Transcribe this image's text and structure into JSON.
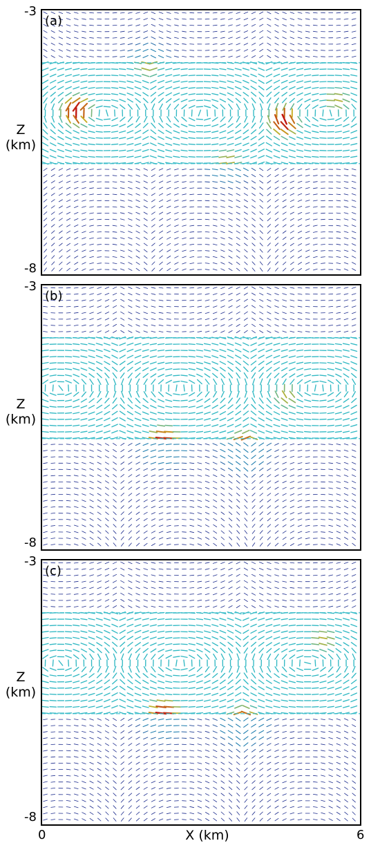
{
  "chart_data": [
    {
      "type": "vector_field",
      "panel_label": "(a)",
      "ylabel": "Z\n(km)",
      "xlim": [
        0,
        6
      ],
      "ylim": [
        -8,
        -3
      ],
      "y_ticks": [
        "-3",
        "-8"
      ],
      "layer_z": [
        -4.0,
        -5.9
      ],
      "cells": [
        {
          "x_center": 1.2,
          "z_center": -4.95,
          "rotation": "clockwise"
        },
        {
          "x_center": 3.0,
          "z_center": -4.95,
          "rotation": "counterclockwise"
        },
        {
          "x_center": 5.4,
          "z_center": -4.95,
          "rotation": "clockwise"
        }
      ],
      "hotspots": [
        {
          "x": 0.65,
          "z": -4.9,
          "magnitude": "high"
        },
        {
          "x": 4.55,
          "z": -5.1,
          "magnitude": "high"
        },
        {
          "x": 5.55,
          "z": -4.7,
          "magnitude": "medium"
        },
        {
          "x": 2.0,
          "z": -4.05,
          "magnitude": "medium"
        },
        {
          "x": 3.5,
          "z": -5.85,
          "magnitude": "medium"
        }
      ]
    },
    {
      "type": "vector_field",
      "panel_label": "(b)",
      "ylabel": "Z\n(km)",
      "xlim": [
        0,
        6
      ],
      "ylim": [
        -8,
        -3
      ],
      "y_ticks": [
        "-3",
        "-8"
      ],
      "layer_z": [
        -4.0,
        -5.9
      ],
      "cells": [
        {
          "x_center": 0.35,
          "z_center": -4.95,
          "rotation": "clockwise"
        },
        {
          "x_center": 2.6,
          "z_center": -4.95,
          "rotation": "counterclockwise"
        },
        {
          "x_center": 5.2,
          "z_center": -4.95,
          "rotation": "clockwise"
        }
      ],
      "hotspots": [
        {
          "x": 2.3,
          "z": -5.95,
          "magnitude": "high"
        },
        {
          "x": 3.8,
          "z": -6.05,
          "magnitude": "high"
        },
        {
          "x": 4.6,
          "z": -5.1,
          "magnitude": "medium"
        }
      ]
    },
    {
      "type": "vector_field",
      "panel_label": "(c)",
      "ylabel": "Z\n(km)",
      "xlabel": "X (km)",
      "xlim": [
        0,
        6
      ],
      "ylim": [
        -8,
        -3
      ],
      "y_ticks": [
        "-3",
        "-8"
      ],
      "x_ticks": [
        "0",
        "6"
      ],
      "layer_z": [
        -4.0,
        -5.9
      ],
      "cells": [
        {
          "x_center": 0.35,
          "z_center": -4.95,
          "rotation": "clockwise"
        },
        {
          "x_center": 2.6,
          "z_center": -4.95,
          "rotation": "counterclockwise"
        },
        {
          "x_center": 5.0,
          "z_center": -4.95,
          "rotation": "clockwise"
        }
      ],
      "hotspots": [
        {
          "x": 2.3,
          "z": -5.9,
          "magnitude": "high"
        },
        {
          "x": 3.8,
          "z": -6.05,
          "magnitude": "high"
        },
        {
          "x": 5.3,
          "z": -4.5,
          "magnitude": "medium"
        }
      ]
    }
  ],
  "colors": {
    "low": "#1a2a8c",
    "mid": "#2bb8c8",
    "mid_high": "#c8b020",
    "high": "#c01010",
    "frame": "#000000"
  }
}
